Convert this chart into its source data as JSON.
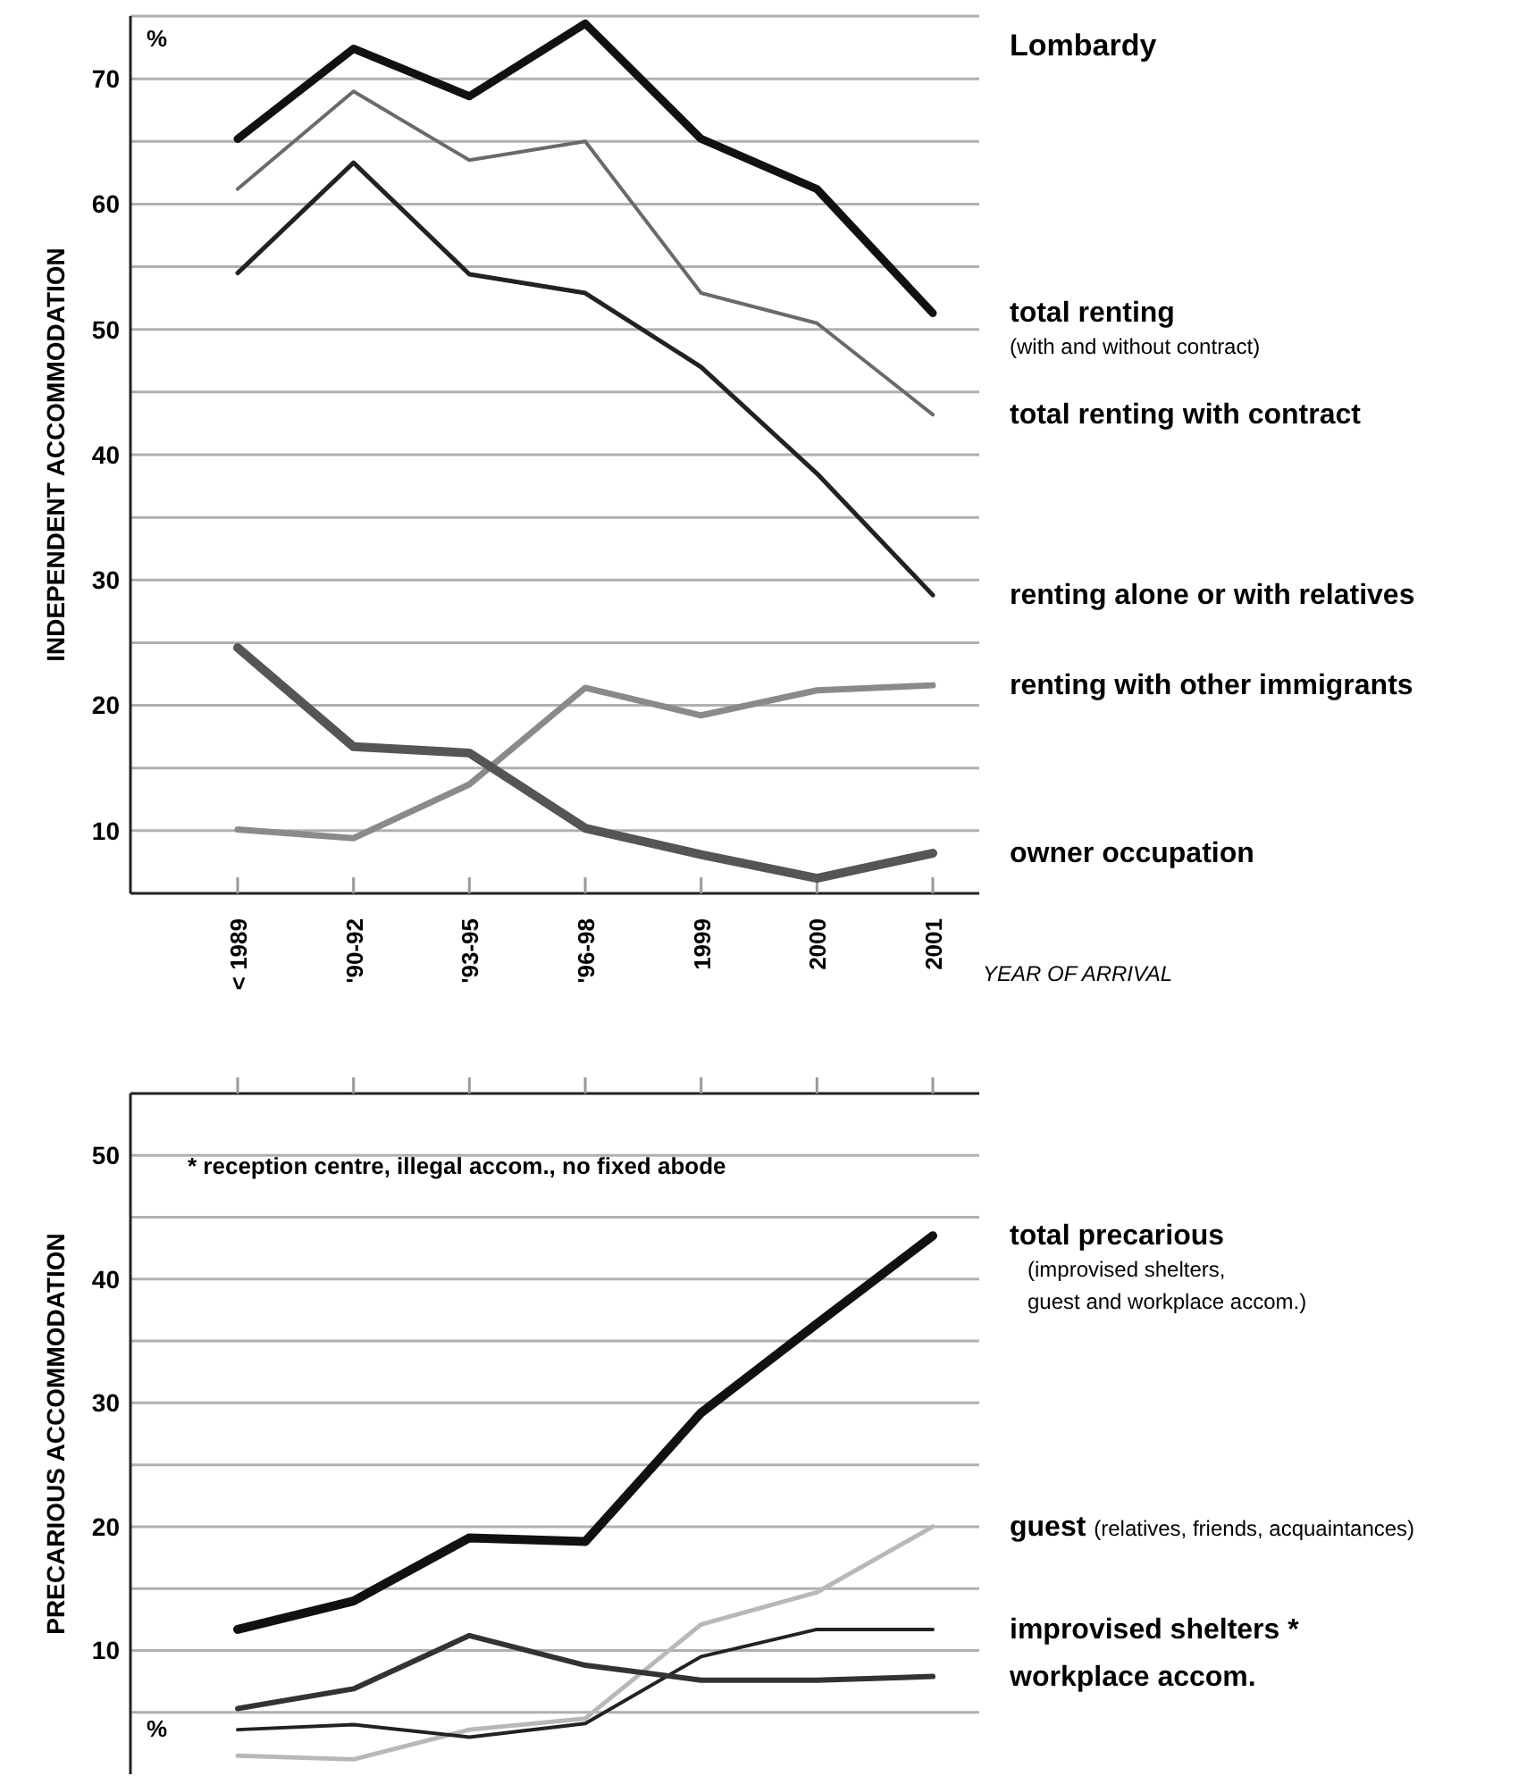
{
  "chart_data": [
    {
      "type": "line",
      "xlabel": "YEAR OF ARRIVAL",
      "ylabel": "INDEPENDENT ACCOMMODATION",
      "annotations": [
        "%",
        "Lombardy"
      ],
      "categories": [
        "< 1989",
        "'90-92",
        "'93-95",
        "'96-98",
        "1999",
        "2000",
        "2001"
      ],
      "ylim": [
        5,
        75
      ],
      "yticks": [
        10,
        {
          "value": 15,
          "label": null
        },
        20,
        {
          "value": 25,
          "label": null
        },
        30,
        {
          "value": 35,
          "label": null
        },
        40,
        {
          "value": 45,
          "label": null
        },
        50,
        {
          "value": 55,
          "label": null
        },
        60,
        {
          "value": 65,
          "label": null
        },
        70,
        {
          "value": 75,
          "label": null
        }
      ],
      "grid": "y",
      "series": [
        {
          "name": "total renting\n(with and without contract)",
          "color": "#111111",
          "values": [
            65.2,
            72.4,
            68.6,
            74.4,
            65.2,
            61.2,
            51.3
          ]
        },
        {
          "name": "total renting with contract",
          "color": "#6a6a6a",
          "values": [
            61.2,
            69.0,
            63.5,
            65.0,
            52.9,
            50.5,
            43.2
          ]
        },
        {
          "name": "renting alone or with relatives",
          "color": "#222222",
          "values": [
            54.5,
            63.3,
            54.4,
            52.9,
            47.0,
            38.5,
            28.8
          ]
        },
        {
          "name": "renting with other immigrants",
          "color": "#8a8a8a",
          "values": [
            10.1,
            9.4,
            13.7,
            21.4,
            19.2,
            21.2,
            21.6
          ]
        },
        {
          "name": "owner occupation",
          "color": "#555555",
          "values": [
            24.6,
            16.7,
            16.2,
            10.2,
            8.1,
            6.2,
            8.2
          ]
        }
      ]
    },
    {
      "type": "line",
      "ylabel": "PRECARIOUS ACCOMMODATION",
      "annotations": [
        "* reception centre, illegal accom., no fixed abode",
        "%"
      ],
      "categories": [
        null,
        null,
        null,
        null,
        null,
        null,
        null
      ],
      "ylim": [
        0,
        55
      ],
      "yticks": [
        {
          "value": 5,
          "label": null
        },
        10,
        {
          "value": 15,
          "label": null
        },
        20,
        {
          "value": 25,
          "label": null
        },
        30,
        {
          "value": 35,
          "label": null
        },
        40,
        {
          "value": 45,
          "label": null
        },
        50
      ],
      "grid": "y",
      "tick_labels": "y",
      "series": [
        {
          "name": "total precarious\n(improvised shelters,\nguest and workplace accom.)",
          "color": "#111111",
          "values": [
            11.7,
            14.0,
            19.1,
            18.8,
            29.2,
            36.4,
            43.5
          ]
        },
        {
          "name": "guest (relatives, friends, acquaintances)",
          "color": "#b8b8b8",
          "values": [
            1.5,
            1.2,
            3.6,
            4.5,
            12.1,
            14.7,
            20.0
          ]
        },
        {
          "name": "improvised shelters *",
          "color": "#222222",
          "values": [
            3.6,
            4.0,
            3.0,
            4.1,
            9.5,
            11.7,
            11.7
          ]
        },
        {
          "name": "workplace accom.",
          "color": "#333333",
          "values": [
            5.3,
            6.9,
            11.2,
            8.8,
            7.6,
            7.6,
            7.9
          ]
        }
      ]
    }
  ]
}
